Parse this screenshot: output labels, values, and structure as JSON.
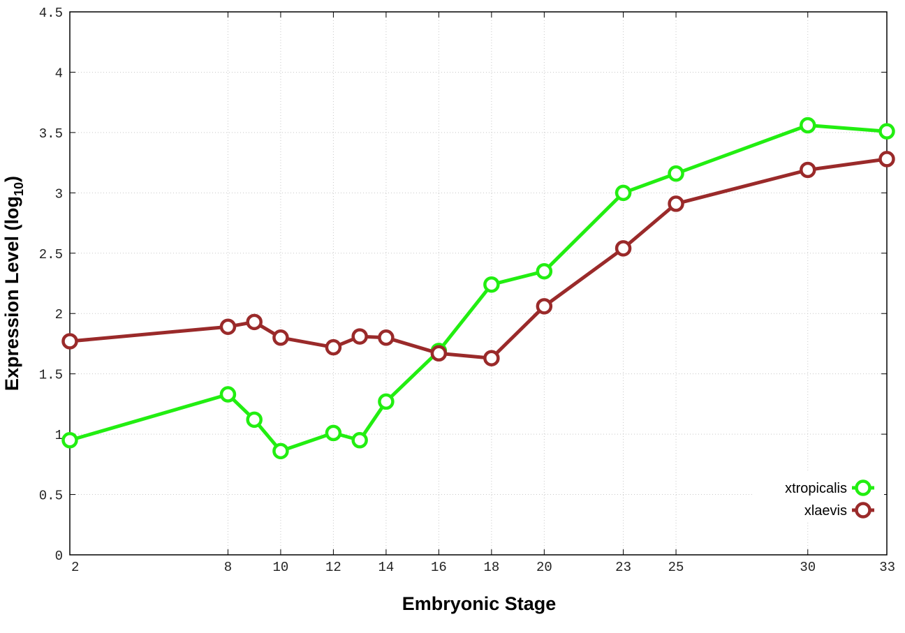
{
  "chart_data": {
    "type": "line",
    "xlabel": "Embryonic Stage",
    "ylabel": "Expression Level (log",
    "ylabel_sub": "10",
    "ylabel_end": ")",
    "x": [
      2,
      8,
      9,
      10,
      12,
      13,
      14,
      16,
      18,
      20,
      23,
      25,
      30,
      33
    ],
    "xticks": [
      "2",
      "8",
      "10",
      "12",
      "14",
      "16",
      "18",
      "20",
      "23",
      "25",
      "30",
      "33"
    ],
    "yticks": [
      "0",
      "0.5",
      "1",
      "1.5",
      "2",
      "2.5",
      "3",
      "3.5",
      "4",
      "4.5"
    ],
    "ylim": [
      0,
      4.5
    ],
    "grid": true,
    "legend_position": "bottom-right",
    "series": [
      {
        "name": "xtropicalis",
        "color": "#22ee11",
        "values": [
          0.95,
          1.33,
          1.12,
          0.86,
          1.01,
          0.95,
          1.27,
          1.69,
          2.24,
          2.35,
          3.0,
          3.16,
          3.56,
          3.51
        ]
      },
      {
        "name": "xlaevis",
        "color": "#9a2a2a",
        "values": [
          1.77,
          1.89,
          1.93,
          1.8,
          1.72,
          1.81,
          1.8,
          1.67,
          1.63,
          2.06,
          2.54,
          2.91,
          3.19,
          3.28
        ]
      }
    ]
  }
}
